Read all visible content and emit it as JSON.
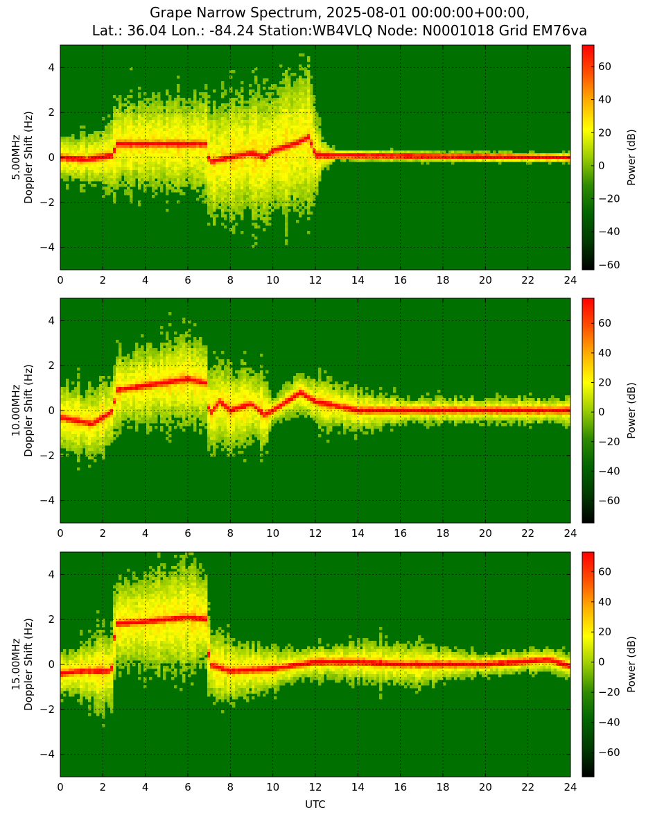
{
  "title_line1": "Grape Narrow Spectrum, 2025-08-01 00:00:00+00:00,",
  "title_line2": "Lat.: 36.04 Lon.: -84.24 Station:WB4VLQ Node: N0001018 Grid EM76va",
  "colors": {
    "colormap": [
      "#000000",
      "#003a00",
      "#006400",
      "#2e8b00",
      "#9acd00",
      "#ffff00",
      "#ffb000",
      "#ff5000",
      "#ff0000"
    ],
    "grid": "#000000"
  },
  "chart_data": [
    {
      "type": "heatmap",
      "frequency": "5.00MHz",
      "ylabel": "5.00MHz\nDoppler Shift (Hz)",
      "xlabel": "",
      "xlim": [
        0,
        24
      ],
      "ylim": [
        -5,
        5
      ],
      "xticks": [
        0,
        2,
        4,
        6,
        8,
        10,
        12,
        14,
        16,
        18,
        20,
        22,
        24
      ],
      "yticks": [
        -4,
        -2,
        0,
        2,
        4
      ],
      "grid": true,
      "colorbar": {
        "label": "Power (dB)",
        "range": [
          -63,
          73
        ],
        "ticks": [
          -60,
          -40,
          -20,
          0,
          20,
          40,
          60
        ]
      },
      "trace": [
        [
          0,
          0.0
        ],
        [
          1.2,
          -0.1
        ],
        [
          2.5,
          0.1
        ],
        [
          2.6,
          0.6
        ],
        [
          4,
          0.6
        ],
        [
          6,
          0.6
        ],
        [
          6.9,
          0.6
        ],
        [
          7.0,
          -0.2
        ],
        [
          8,
          0.0
        ],
        [
          9,
          0.2
        ],
        [
          9.6,
          0.0
        ],
        [
          10,
          0.3
        ],
        [
          11,
          0.6
        ],
        [
          11.7,
          0.9
        ],
        [
          12,
          0.1
        ],
        [
          24,
          0.0
        ]
      ],
      "spread": [
        [
          0,
          0.8
        ],
        [
          2,
          1.0
        ],
        [
          2.6,
          1.6
        ],
        [
          6,
          1.8
        ],
        [
          7,
          2.2
        ],
        [
          10,
          2.4
        ],
        [
          11.6,
          3.0
        ],
        [
          12.3,
          0.6
        ],
        [
          13,
          0.2
        ],
        [
          24,
          0.15
        ]
      ]
    },
    {
      "type": "heatmap",
      "frequency": "10.00MHz",
      "ylabel": "10.00MHz\nDoppler Shift (Hz)",
      "xlabel": "",
      "xlim": [
        0,
        24
      ],
      "ylim": [
        -5,
        5
      ],
      "xticks": [
        0,
        2,
        4,
        6,
        8,
        10,
        12,
        14,
        16,
        18,
        20,
        22,
        24
      ],
      "yticks": [
        -4,
        -2,
        0,
        2,
        4
      ],
      "grid": true,
      "colorbar": {
        "label": "Power (dB)",
        "range": [
          -75,
          77
        ],
        "ticks": [
          -60,
          -40,
          -20,
          0,
          20,
          40,
          60
        ]
      },
      "trace": [
        [
          0,
          -0.3
        ],
        [
          1.5,
          -0.6
        ],
        [
          2.5,
          0.0
        ],
        [
          2.6,
          0.9
        ],
        [
          4,
          1.1
        ],
        [
          6,
          1.4
        ],
        [
          6.9,
          1.2
        ],
        [
          7.0,
          -0.2
        ],
        [
          7.5,
          0.4
        ],
        [
          8,
          0.0
        ],
        [
          9,
          0.3
        ],
        [
          9.6,
          -0.2
        ],
        [
          10,
          0.0
        ],
        [
          11.3,
          0.8
        ],
        [
          12,
          0.4
        ],
        [
          13,
          0.2
        ],
        [
          14,
          0.0
        ],
        [
          24,
          0.0
        ]
      ],
      "spread": [
        [
          0,
          1.2
        ],
        [
          2.6,
          1.4
        ],
        [
          6,
          1.6
        ],
        [
          7,
          1.6
        ],
        [
          9.6,
          1.4
        ],
        [
          10,
          0.5
        ],
        [
          12,
          0.9
        ],
        [
          14,
          0.8
        ],
        [
          16,
          0.5
        ],
        [
          24,
          0.5
        ]
      ]
    },
    {
      "type": "heatmap",
      "frequency": "15.00MHz",
      "ylabel": "15.00MHz\nDoppler Shift (Hz)",
      "xlabel": "UTC",
      "xlim": [
        0,
        24
      ],
      "ylim": [
        -5,
        5
      ],
      "xticks": [
        0,
        2,
        4,
        6,
        8,
        10,
        12,
        14,
        16,
        18,
        20,
        22,
        24
      ],
      "yticks": [
        -4,
        -2,
        0,
        2,
        4
      ],
      "grid": true,
      "colorbar": {
        "label": "Power (dB)",
        "range": [
          -76,
          73
        ],
        "ticks": [
          -60,
          -40,
          -20,
          0,
          20,
          40,
          60
        ]
      },
      "trace": [
        [
          0,
          -0.4
        ],
        [
          1,
          -0.3
        ],
        [
          2.4,
          -0.3
        ],
        [
          2.6,
          1.8
        ],
        [
          4,
          1.9
        ],
        [
          6,
          2.1
        ],
        [
          6.9,
          2.0
        ],
        [
          7.0,
          0.0
        ],
        [
          8,
          -0.3
        ],
        [
          10,
          -0.2
        ],
        [
          12,
          0.1
        ],
        [
          14,
          0.1
        ],
        [
          16,
          0.0
        ],
        [
          20,
          0.0
        ],
        [
          23,
          0.2
        ],
        [
          24,
          -0.1
        ]
      ],
      "spread": [
        [
          0,
          0.8
        ],
        [
          2.6,
          1.6
        ],
        [
          6,
          2.2
        ],
        [
          7,
          1.4
        ],
        [
          10,
          0.8
        ],
        [
          12,
          0.6
        ],
        [
          16,
          0.9
        ],
        [
          20,
          0.4
        ],
        [
          24,
          0.5
        ]
      ]
    }
  ]
}
